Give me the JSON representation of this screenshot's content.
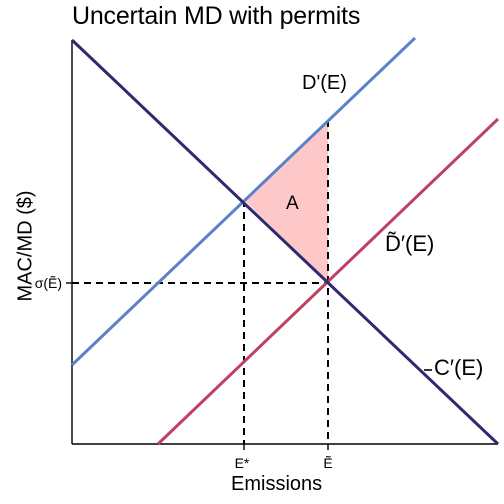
{
  "title": "Uncertain MD with permits",
  "xlabel": "Emissions",
  "ylabel": "MAC/MD ($)",
  "colors": {
    "axes": "#000000",
    "dprime": "#5a82c8",
    "dtilde": "#bf4062",
    "cprime": "#2f2a6e",
    "area": "#ffc8c8",
    "guides": "#000000"
  },
  "curves": {
    "dprime_label": "D'(E)",
    "dtilde_label": "D̃′(E)",
    "cprime_label": "C′(E)"
  },
  "area_label": "A",
  "ticks": {
    "x": [
      "E*",
      "Ẽ"
    ],
    "y": [
      "σ(Ẽ)"
    ]
  }
}
